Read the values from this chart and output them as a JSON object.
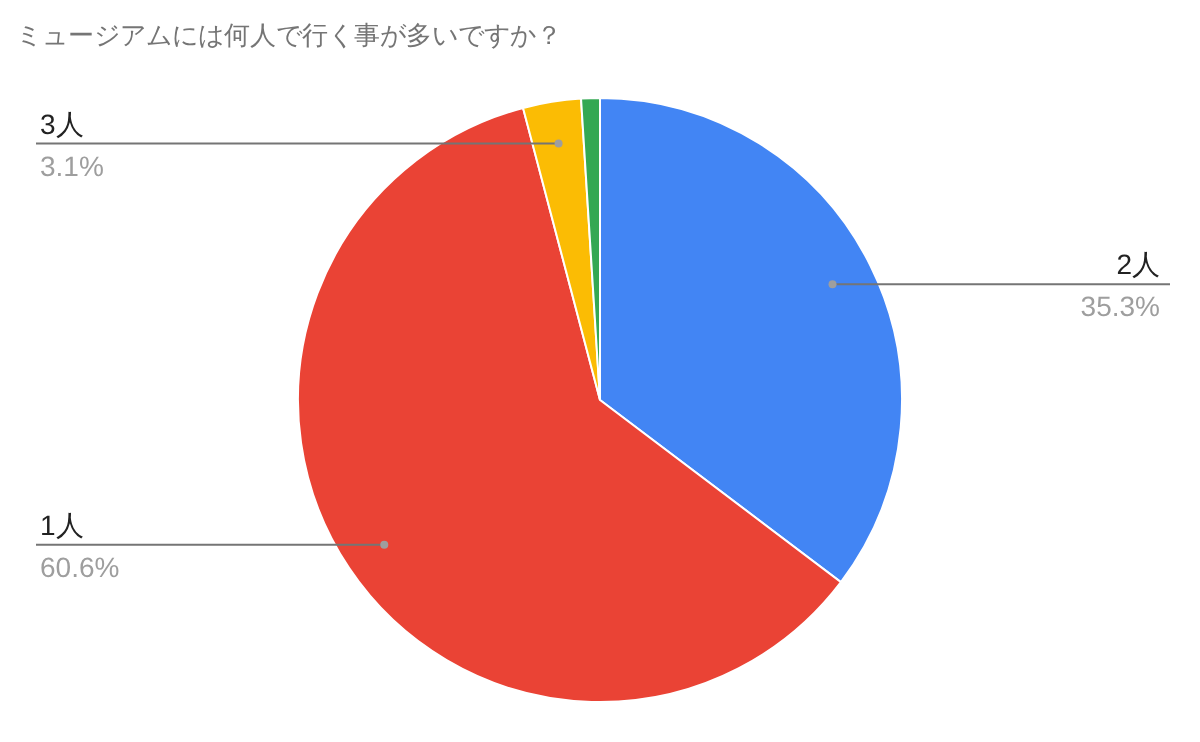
{
  "chart_data": {
    "type": "pie",
    "title": "ミュージアムには何人で行く事が多いですか？",
    "categories": [
      "2人",
      "1人",
      "3人",
      null
    ],
    "values": [
      35.3,
      60.6,
      3.1,
      1.0
    ],
    "value_labels": [
      "35.3%",
      "60.6%",
      "3.1%",
      null
    ],
    "colors": [
      "#4285f4",
      "#ea4335",
      "#fbbc04",
      "#34a853"
    ]
  }
}
